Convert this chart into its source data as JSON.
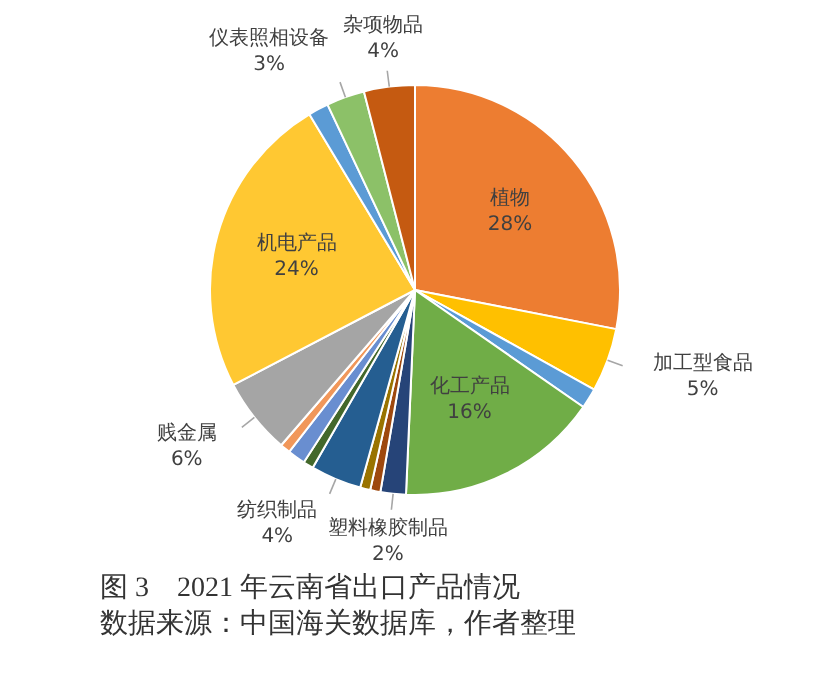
{
  "chart_data": {
    "type": "pie",
    "title": "图 3　2021 年云南省出口产品情况",
    "annotations": [
      "数据来源：中国海关数据库，作者整理"
    ],
    "categories": [
      "植物",
      "加工型食品",
      null,
      "化工产品",
      "塑料橡胶制品",
      null,
      null,
      "纺织制品",
      null,
      null,
      null,
      "贱金属",
      "机电产品",
      null,
      "仪表照相设备",
      "杂项物品"
    ],
    "values": [
      28,
      5,
      1.6,
      16,
      2,
      0.8,
      0.8,
      4,
      0.8,
      1.4,
      0.8,
      6,
      24,
      1.6,
      3,
      4
    ],
    "value_labels": [
      "28%",
      "5%",
      null,
      "16%",
      "2%",
      null,
      null,
      "4%",
      null,
      null,
      null,
      "6%",
      "24%",
      null,
      "3%",
      "4%"
    ],
    "colors": [
      "#ed7d31",
      "#ffc000",
      "#5b9bd5",
      "#70ad47",
      "#264478",
      "#9e480e",
      "#997300",
      "#255e91",
      "#43682b",
      "#698ed0",
      "#f1975a",
      "#a5a5a5",
      "#ffc832",
      "#5b9bd5",
      "#8cc168",
      "#c55a11"
    ]
  }
}
